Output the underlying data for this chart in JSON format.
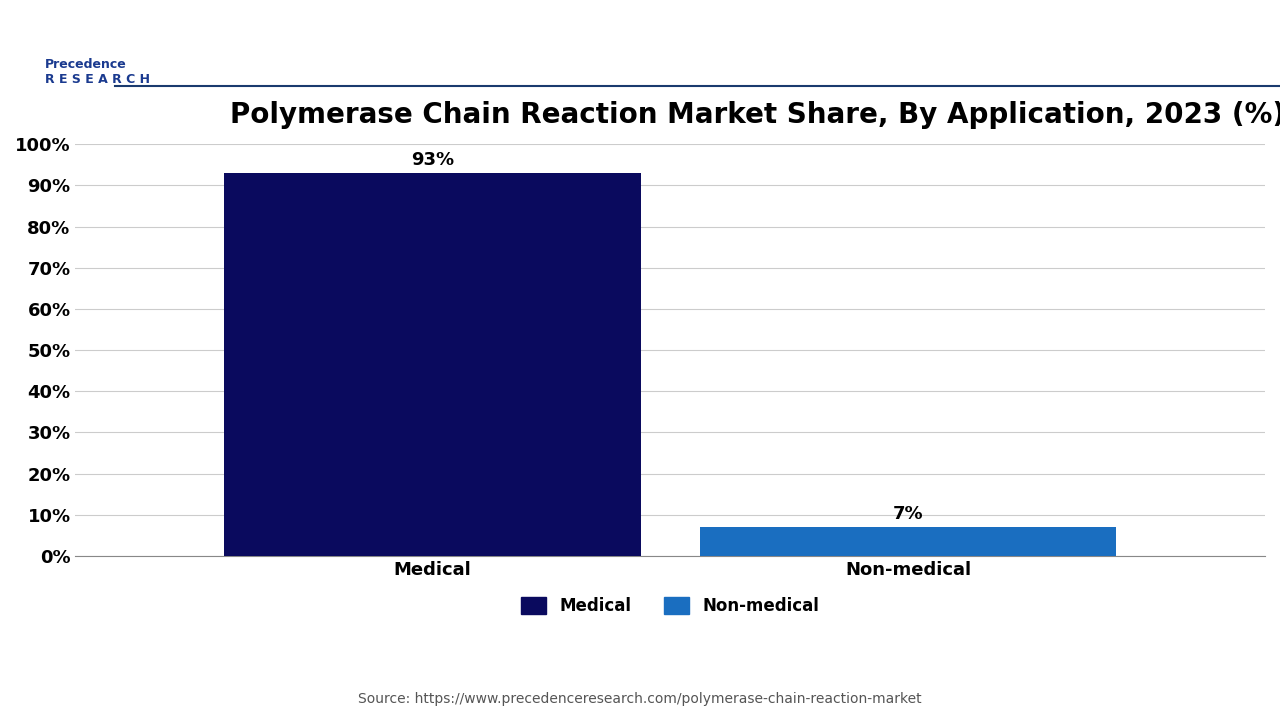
{
  "title": "Polymerase Chain Reaction Market Share, By Application, 2023 (%)",
  "categories": [
    "Medical",
    "Non-medical"
  ],
  "values": [
    93,
    7
  ],
  "bar_colors": [
    "#0a0a5e",
    "#1a6ec0"
  ],
  "bar_width": 0.35,
  "ylim": [
    0,
    100
  ],
  "yticks": [
    0,
    10,
    20,
    30,
    40,
    50,
    60,
    70,
    80,
    90,
    100
  ],
  "ytick_labels": [
    "0%",
    "10%",
    "20%",
    "30%",
    "40%",
    "50%",
    "60%",
    "70%",
    "80%",
    "90%",
    "100%"
  ],
  "value_labels": [
    "93%",
    "7%"
  ],
  "legend_labels": [
    "Medical",
    "Non-medical"
  ],
  "legend_colors": [
    "#0a0a5e",
    "#1a6ec0"
  ],
  "source_text": "Source: https://www.precedenceresearch.com/polymerase-chain-reaction-market",
  "background_color": "#ffffff",
  "plot_bg_color": "#ffffff",
  "grid_color": "#cccccc",
  "title_fontsize": 20,
  "tick_fontsize": 13,
  "label_fontsize": 13,
  "value_fontsize": 13,
  "legend_fontsize": 12,
  "source_fontsize": 10,
  "title_color": "#000000",
  "tick_color": "#000000",
  "label_color": "#000000"
}
